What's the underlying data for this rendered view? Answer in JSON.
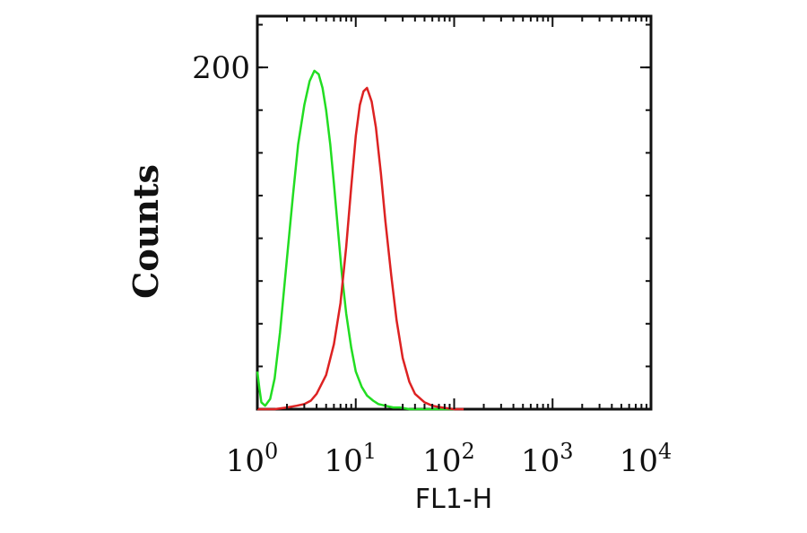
{
  "chart_data": {
    "type": "line",
    "xlabel": "FL1-H",
    "ylabel": "Counts",
    "x_scale": "log",
    "xlim": [
      1,
      10000
    ],
    "ylim": [
      0,
      230
    ],
    "grid": false,
    "x_ticks": [
      {
        "value": 1,
        "base": "10",
        "exp": "0"
      },
      {
        "value": 10,
        "base": "10",
        "exp": "1"
      },
      {
        "value": 100,
        "base": "10",
        "exp": "2"
      },
      {
        "value": 1000,
        "base": "10",
        "exp": "3"
      },
      {
        "value": 10000,
        "base": "10",
        "exp": "4"
      }
    ],
    "y_ticks": [
      {
        "value": 200,
        "label": "200"
      }
    ],
    "series": [
      {
        "color": "#22dd22",
        "x": [
          1.0,
          1.05,
          1.1,
          1.2,
          1.35,
          1.5,
          1.7,
          2.0,
          2.3,
          2.6,
          3.0,
          3.4,
          3.8,
          4.2,
          4.6,
          5.0,
          5.5,
          6.0,
          6.6,
          7.2,
          8.0,
          9.0,
          10.0,
          11.5,
          13.0,
          15.0,
          17.0,
          20.0,
          24.0,
          28.0,
          35.0,
          50.0,
          100.0
        ],
        "y": [
          22,
          12,
          4,
          2,
          6,
          18,
          45,
          88,
          125,
          155,
          178,
          192,
          198,
          196,
          188,
          175,
          155,
          132,
          105,
          80,
          56,
          36,
          22,
          13,
          8,
          5,
          3,
          2,
          1,
          1,
          0,
          0,
          0
        ]
      },
      {
        "color": "#dd2222",
        "x": [
          1.0,
          1.5,
          2.0,
          2.5,
          3.0,
          3.5,
          4.0,
          5.0,
          6.0,
          7.0,
          8.0,
          9.0,
          10.0,
          11.0,
          12.0,
          13.0,
          14.5,
          16.0,
          18.0,
          20.0,
          23.0,
          26.0,
          30.0,
          35.0,
          40.0,
          50.0,
          60.0,
          75.0,
          100.0,
          125.0
        ],
        "y": [
          0,
          0,
          1,
          2,
          3,
          5,
          9,
          20,
          38,
          62,
          95,
          130,
          160,
          178,
          186,
          188,
          180,
          165,
          138,
          110,
          78,
          52,
          30,
          16,
          9,
          4,
          2,
          1,
          0,
          0
        ]
      }
    ]
  }
}
